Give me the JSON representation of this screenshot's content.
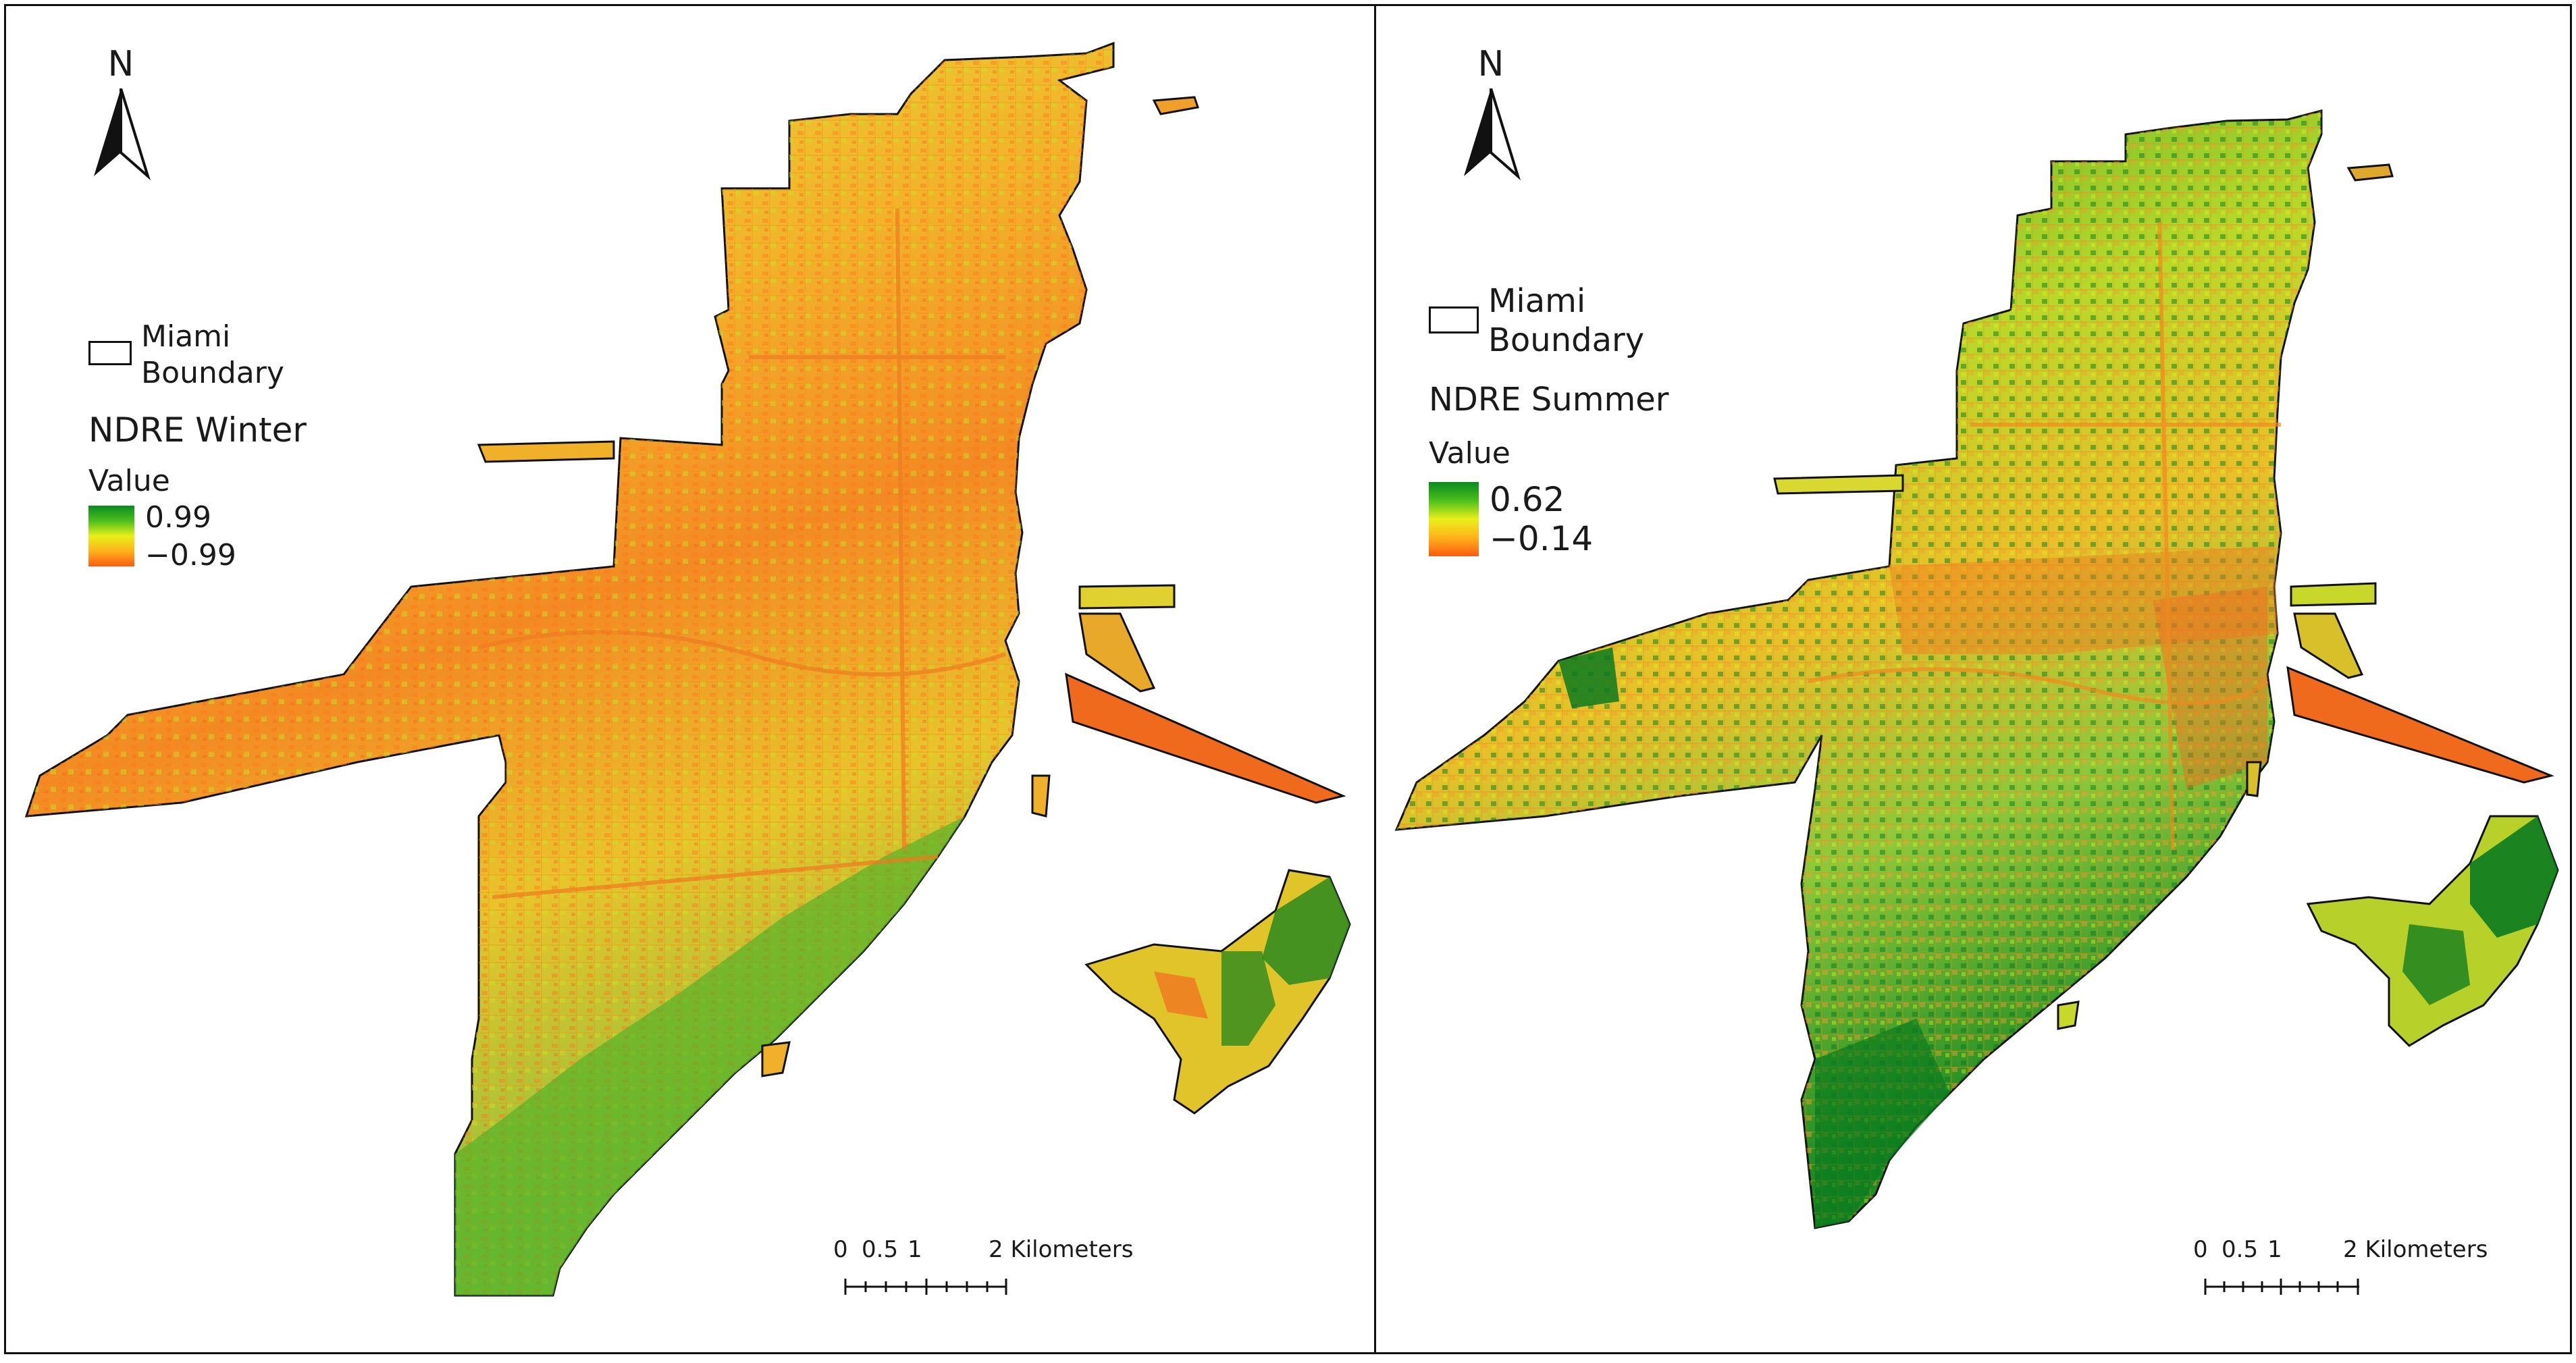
{
  "left_panel": {
    "north_label": "N",
    "legend": {
      "boundary_label_line1": "Miami",
      "boundary_label_line2": "Boundary",
      "layer_title": "NDRE Winter",
      "value_label": "Value",
      "max_value": "0.99",
      "min_value": "−0.99"
    },
    "scale": {
      "tick_0": "0",
      "tick_1": "0.5",
      "tick_2": "1",
      "tick_3": "2 Kilometers"
    }
  },
  "right_panel": {
    "north_label": "N",
    "legend": {
      "boundary_label_line1": "Miami",
      "boundary_label_line2": "Boundary",
      "layer_title": "NDRE Summer",
      "value_label": "Value",
      "max_value": "0.62",
      "min_value": "−0.14"
    },
    "scale": {
      "tick_0": "0",
      "tick_1": "0.5",
      "tick_2": "1",
      "tick_3": "2 Kilometers"
    }
  },
  "colors": {
    "ramp_high": "#0a8a1e",
    "ramp_mid": "#e8f01a",
    "ramp_low": "#ff5a12",
    "boundary": "#111111"
  }
}
